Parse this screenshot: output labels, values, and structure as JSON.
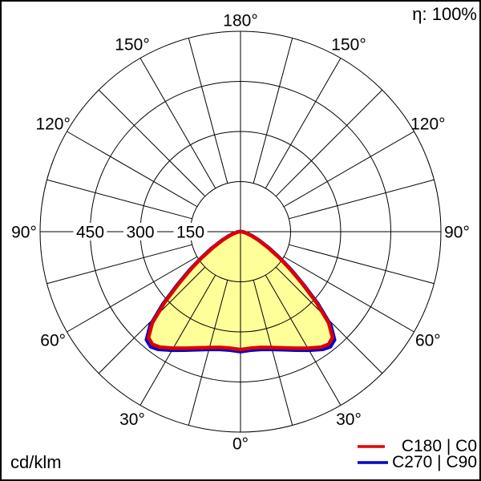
{
  "header": {
    "efficiency_label": "η: 100%"
  },
  "footer": {
    "unit_label": "cd/klm"
  },
  "legend": [
    {
      "label": "C180 | C0",
      "color": "#dd0000"
    },
    {
      "label": "C270 | C90",
      "color": "#0000cc"
    }
  ],
  "colors": {
    "background": "#ffffff",
    "grid": "#000000",
    "frame": "#000000",
    "curve_fill": "#ffff99",
    "c0_curve": "#dd0000",
    "c90_curve": "#0000cc"
  },
  "chart_data": {
    "type": "polar",
    "subtype": "photometric_intensity_distribution",
    "unit": "cd/klm",
    "efficiency": "η: 100%",
    "rmax": 600,
    "ring_values": [
      150,
      300,
      450,
      600
    ],
    "ring_labels": [
      "150",
      "300",
      "450"
    ],
    "spoke_step_deg": 15,
    "angle_tick_step_deg": 30,
    "angle_tick_labels": [
      "0°",
      "30°",
      "60°",
      "90°",
      "120°",
      "150°",
      "180°"
    ],
    "legend_position": "bottom-right",
    "grid": true,
    "series": [
      {
        "name": "C180 | C0",
        "color": "#dd0000",
        "fill": "#ffff99",
        "symmetric_about_vertical": true,
        "gamma_deg": [
          0,
          5,
          10,
          15,
          20,
          25,
          30,
          35,
          38,
          41,
          44,
          47,
          50,
          53,
          56,
          60,
          65,
          70,
          75,
          80,
          85,
          90
        ],
        "intensity_cd_klm": [
          353,
          350,
          352,
          359,
          370,
          385,
          403,
          422,
          428,
          420,
          380,
          310,
          240,
          185,
          140,
          95,
          58,
          34,
          19,
          10,
          5,
          2
        ]
      },
      {
        "name": "C270 | C90",
        "color": "#0000cc",
        "fill": "#ffff99",
        "symmetric_about_vertical": true,
        "gamma_deg": [
          0,
          5,
          10,
          15,
          20,
          25,
          30,
          35,
          38,
          41,
          44,
          47,
          50,
          53,
          56,
          60,
          65,
          70,
          75,
          80,
          85,
          90
        ],
        "intensity_cd_klm": [
          359,
          356,
          358,
          365,
          376,
          391,
          410,
          430,
          437,
          429,
          389,
          318,
          247,
          191,
          145,
          100,
          62,
          38,
          22,
          13,
          8,
          6
        ]
      }
    ]
  }
}
